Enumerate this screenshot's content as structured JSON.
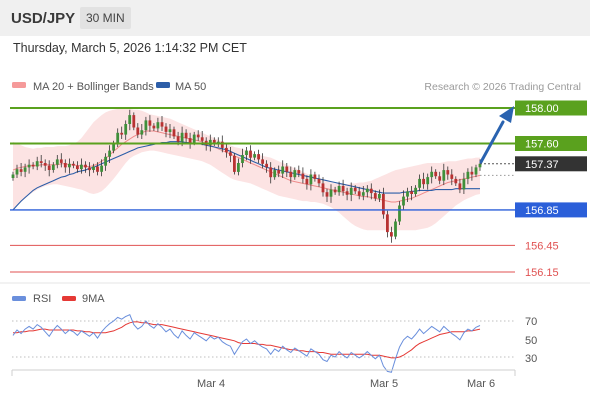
{
  "header": {
    "symbol": "USD/JPY",
    "timeframe": "30 MIN"
  },
  "datetime": "Thursday, March 5, 2026 1:14:32 PM CET",
  "legend": {
    "bollinger": {
      "label": "MA 20 + Bollinger Bands",
      "color": "#f59a9a"
    },
    "ma50": {
      "label": "MA 50",
      "color": "#2d5ea8"
    }
  },
  "copyright": "Research © 2026 Trading Central",
  "rsi_legend": {
    "rsi": {
      "label": "RSI",
      "color": "#6a8fdc"
    },
    "ma9": {
      "label": "9MA",
      "color": "#e53935"
    }
  },
  "rsi_ticks": [
    "70",
    "50",
    "30"
  ],
  "x_labels": [
    "Mar 4",
    "Mar 5",
    "Mar 6"
  ],
  "levels": [
    {
      "label": "158.00",
      "value": 158.0,
      "kind": "resistance"
    },
    {
      "label": "157.60",
      "value": 157.6,
      "kind": "resistance"
    },
    {
      "label": "157.37",
      "value": 157.37,
      "kind": "current"
    },
    {
      "label": "156.85",
      "value": 156.85,
      "kind": "pivot"
    },
    {
      "label": "156.45",
      "value": 156.45,
      "kind": "support"
    },
    {
      "label": "156.15",
      "value": 156.15,
      "kind": "support"
    }
  ],
  "colors": {
    "resistance": "#5aa11e",
    "pivot": "#2b5fd9",
    "support": "#e05252",
    "current": "#333333",
    "candle_up": "#3f8f3a",
    "candle_down": "#b83232",
    "arrow": "#2a63b0"
  },
  "chart_data": {
    "type": "candlestick",
    "y_range": [
      156.0,
      158.1
    ],
    "close": [
      157.25,
      157.31,
      157.28,
      157.33,
      157.36,
      157.34,
      157.4,
      157.38,
      157.35,
      157.3,
      157.36,
      157.42,
      157.38,
      157.33,
      157.37,
      157.35,
      157.31,
      157.36,
      157.33,
      157.3,
      157.34,
      157.28,
      157.35,
      157.45,
      157.52,
      157.6,
      157.72,
      157.7,
      157.82,
      157.92,
      157.78,
      157.7,
      157.75,
      157.86,
      157.8,
      157.77,
      157.84,
      157.79,
      157.73,
      157.76,
      157.68,
      157.62,
      157.72,
      157.66,
      157.61,
      157.7,
      157.67,
      157.63,
      157.58,
      157.64,
      157.6,
      157.62,
      157.55,
      157.5,
      157.46,
      157.28,
      157.38,
      157.47,
      157.52,
      157.44,
      157.48,
      157.42,
      157.37,
      157.33,
      157.22,
      157.3,
      157.26,
      157.34,
      157.28,
      157.22,
      157.3,
      157.26,
      157.2,
      157.14,
      157.25,
      157.2,
      157.15,
      157.05,
      157.0,
      157.08,
      157.05,
      157.12,
      157.06,
      157.02,
      157.1,
      157.06,
      157.01,
      157.05,
      157.09,
      157.04,
      156.98,
      157.03,
      156.8,
      156.6,
      156.55,
      156.72,
      156.9,
      157.0,
      157.06,
      157.03,
      157.1,
      157.2,
      157.14,
      157.22,
      157.28,
      157.23,
      157.18,
      157.3,
      157.25,
      157.2,
      157.15,
      157.08,
      157.2,
      157.28,
      157.25,
      157.33,
      157.37
    ],
    "ma20": [
      157.3,
      157.32,
      157.33,
      157.34,
      157.35,
      157.35,
      157.35,
      157.36,
      157.36,
      157.36,
      157.36,
      157.36,
      157.37,
      157.37,
      157.36,
      157.36,
      157.35,
      157.35,
      157.34,
      157.34,
      157.35,
      157.37,
      157.4,
      157.43,
      157.47,
      157.51,
      157.55,
      157.59,
      157.62,
      157.65,
      157.68,
      157.7,
      157.72,
      157.74,
      157.74,
      157.74,
      157.73,
      157.72,
      157.71,
      157.7,
      157.69,
      157.68,
      157.67,
      157.66,
      157.65,
      157.64,
      157.63,
      157.62,
      157.6,
      157.58,
      157.56,
      157.54,
      157.52,
      157.5,
      157.48,
      157.46,
      157.44,
      157.42,
      157.4,
      157.38,
      157.36,
      157.34,
      157.32,
      157.3,
      157.28,
      157.26,
      157.24,
      157.22,
      157.2,
      157.18,
      157.17,
      157.16,
      157.15,
      157.14,
      157.13,
      157.12,
      157.11,
      157.1,
      157.09,
      157.08,
      157.07,
      157.06,
      157.05,
      157.04,
      157.03,
      157.02,
      157.01,
      157.0,
      157.0,
      156.99,
      156.98,
      156.97,
      156.96,
      156.95,
      156.94,
      156.94,
      156.95,
      156.96,
      156.97,
      156.98,
      157.0,
      157.02,
      157.04,
      157.06,
      157.08,
      157.1,
      157.12,
      157.14,
      157.16,
      157.17,
      157.18,
      157.19,
      157.2,
      157.21,
      157.22,
      157.23,
      157.24
    ],
    "upper_band": [
      157.62,
      157.6,
      157.58,
      157.56,
      157.55,
      157.54,
      157.55,
      157.55,
      157.56,
      157.56,
      157.56,
      157.57,
      157.57,
      157.57,
      157.58,
      157.6,
      157.62,
      157.66,
      157.72,
      157.78,
      157.84,
      157.88,
      157.92,
      157.95,
      157.97,
      157.98,
      157.99,
      158.0,
      158.0,
      157.99,
      157.98,
      157.98,
      157.97,
      157.95,
      157.93,
      157.92,
      157.91,
      157.9,
      157.89,
      157.88,
      157.86,
      157.84,
      157.82,
      157.8,
      157.78,
      157.76,
      157.74,
      157.72,
      157.7,
      157.68,
      157.66,
      157.64,
      157.62,
      157.6,
      157.58,
      157.56,
      157.55,
      157.54,
      157.52,
      157.5,
      157.48,
      157.47,
      157.46,
      157.45,
      157.44,
      157.42,
      157.4,
      157.38,
      157.36,
      157.34,
      157.32,
      157.3,
      157.28,
      157.26,
      157.24,
      157.22,
      157.2,
      157.18,
      157.17,
      157.16,
      157.15,
      157.14,
      157.14,
      157.14,
      157.15,
      157.15,
      157.16,
      157.16,
      157.17,
      157.18,
      157.2,
      157.22,
      157.24,
      157.26,
      157.28,
      157.3,
      157.31,
      157.32,
      157.33,
      157.34,
      157.35,
      157.36,
      157.37,
      157.38,
      157.38,
      157.38,
      157.38,
      157.39,
      157.4,
      157.4,
      157.4,
      157.41,
      157.42,
      157.43,
      157.43,
      157.44,
      157.44
    ],
    "lower_band": [
      156.85,
      156.9,
      156.94,
      156.98,
      157.02,
      157.05,
      157.08,
      157.1,
      157.12,
      157.13,
      157.14,
      157.14,
      157.13,
      157.12,
      157.11,
      157.1,
      157.09,
      157.08,
      157.06,
      157.04,
      157.03,
      157.04,
      157.06,
      157.1,
      157.15,
      157.2,
      157.26,
      157.32,
      157.38,
      157.43,
      157.46,
      157.48,
      157.5,
      157.51,
      157.52,
      157.52,
      157.51,
      157.5,
      157.49,
      157.48,
      157.47,
      157.46,
      157.45,
      157.44,
      157.43,
      157.42,
      157.41,
      157.4,
      157.38,
      157.36,
      157.33,
      157.3,
      157.27,
      157.24,
      157.21,
      157.19,
      157.18,
      157.17,
      157.16,
      157.15,
      157.13,
      157.11,
      157.09,
      157.07,
      157.05,
      157.03,
      157.01,
      157.0,
      156.99,
      156.98,
      156.97,
      156.96,
      156.95,
      156.95,
      156.94,
      156.94,
      156.93,
      156.92,
      156.9,
      156.88,
      156.85,
      156.82,
      156.78,
      156.74,
      156.7,
      156.67,
      156.65,
      156.63,
      156.62,
      156.62,
      156.62,
      156.62,
      156.62,
      156.62,
      156.62,
      156.62,
      156.62,
      156.62,
      156.62,
      156.62,
      156.62,
      156.63,
      156.64,
      156.65,
      156.67,
      156.7,
      156.74,
      156.78,
      156.82,
      156.86,
      156.9,
      156.93,
      156.96,
      156.98,
      157.0,
      157.02,
      157.03
    ],
    "ma50": [
      156.85,
      156.9,
      156.95,
      156.99,
      157.03,
      157.07,
      157.1,
      157.12,
      157.14,
      157.16,
      157.18,
      157.2,
      157.22,
      157.23,
      157.25,
      157.26,
      157.28,
      157.29,
      157.3,
      157.32,
      157.33,
      157.35,
      157.37,
      157.39,
      157.41,
      157.43,
      157.45,
      157.47,
      157.49,
      157.51,
      157.53,
      157.55,
      157.56,
      157.57,
      157.58,
      157.59,
      157.6,
      157.61,
      157.61,
      157.62,
      157.62,
      157.62,
      157.62,
      157.61,
      157.61,
      157.6,
      157.6,
      157.59,
      157.58,
      157.57,
      157.56,
      157.55,
      157.54,
      157.53,
      157.51,
      157.49,
      157.47,
      157.45,
      157.43,
      157.41,
      157.39,
      157.37,
      157.35,
      157.33,
      157.32,
      157.31,
      157.3,
      157.29,
      157.28,
      157.27,
      157.26,
      157.25,
      157.24,
      157.23,
      157.22,
      157.21,
      157.2,
      157.19,
      157.18,
      157.17,
      157.16,
      157.15,
      157.14,
      157.13,
      157.12,
      157.11,
      157.1,
      157.09,
      157.08,
      157.07,
      157.06,
      157.05,
      157.04,
      157.04,
      157.04,
      157.04,
      157.04,
      157.05,
      157.05,
      157.06,
      157.06,
      157.07,
      157.07,
      157.07,
      157.07,
      157.08,
      157.08,
      157.08,
      157.08,
      157.08,
      157.09,
      157.09,
      157.09,
      157.09,
      157.09,
      157.09,
      157.09
    ],
    "rsi": [
      54,
      60,
      56,
      61,
      64,
      61,
      66,
      63,
      58,
      53,
      60,
      65,
      61,
      56,
      60,
      58,
      54,
      59,
      56,
      53,
      57,
      51,
      58,
      63,
      67,
      70,
      74,
      72,
      75,
      77,
      66,
      61,
      64,
      70,
      65,
      62,
      67,
      63,
      58,
      61,
      55,
      51,
      59,
      54,
      50,
      57,
      54,
      51,
      48,
      53,
      50,
      52,
      47,
      44,
      42,
      33,
      40,
      47,
      50,
      45,
      48,
      44,
      41,
      39,
      33,
      39,
      36,
      42,
      38,
      35,
      40,
      37,
      34,
      31,
      39,
      36,
      33,
      27,
      25,
      32,
      30,
      36,
      32,
      29,
      35,
      32,
      29,
      32,
      36,
      32,
      28,
      32,
      20,
      14,
      13,
      28,
      41,
      49,
      53,
      50,
      55,
      61,
      56,
      60,
      64,
      61,
      58,
      64,
      60,
      56,
      53,
      49,
      57,
      61,
      59,
      63,
      65
    ],
    "rsi_ma9": [
      57,
      57,
      58,
      58,
      59,
      59,
      60,
      61,
      61,
      60,
      60,
      60,
      60,
      60,
      60,
      60,
      59,
      59,
      58,
      58,
      57,
      57,
      57,
      57,
      58,
      59,
      61,
      63,
      66,
      68,
      69,
      69,
      68,
      68,
      67,
      66,
      66,
      66,
      65,
      64,
      63,
      62,
      61,
      60,
      59,
      58,
      57,
      56,
      55,
      54,
      53,
      52,
      51,
      50,
      49,
      48,
      46,
      45,
      45,
      45,
      45,
      44,
      44,
      43,
      43,
      42,
      41,
      40,
      39,
      38,
      38,
      37,
      37,
      36,
      36,
      36,
      35,
      35,
      34,
      33,
      33,
      33,
      33,
      33,
      33,
      33,
      33,
      33,
      33,
      32,
      32,
      32,
      31,
      30,
      29,
      29,
      30,
      32,
      35,
      38,
      42,
      45,
      47,
      49,
      51,
      53,
      55,
      56,
      57,
      58,
      58,
      58,
      58,
      59,
      59,
      60,
      61
    ],
    "rsi_range": [
      10,
      80
    ]
  }
}
